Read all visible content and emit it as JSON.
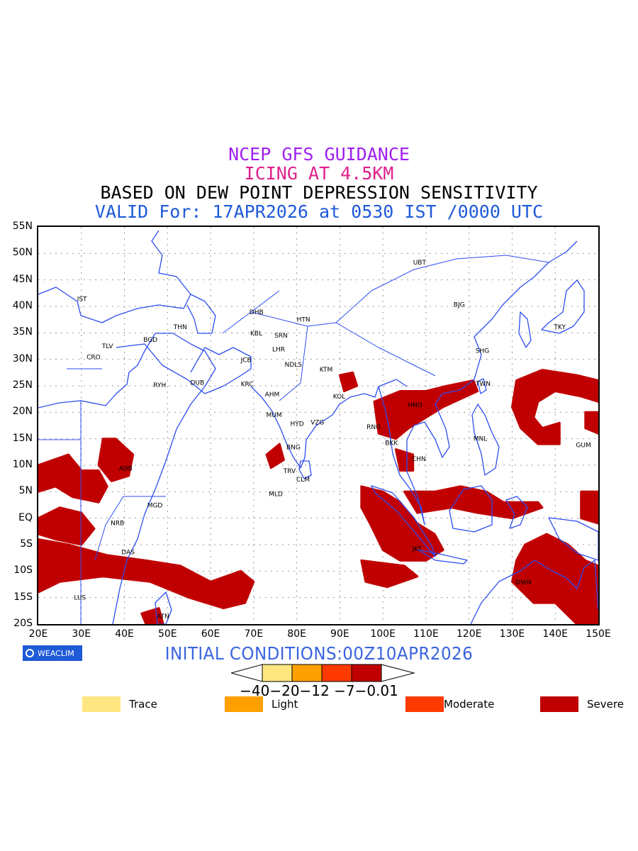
{
  "titles": {
    "line1": "NCEP GFS GUIDANCE",
    "line2": "ICING AT 4.5KM",
    "line3": "BASED ON DEW POINT DEPRESSION SENSITIVITY",
    "line4": "VALID For: 17APR2026 at 0530 IST /0000 UTC"
  },
  "colors": {
    "line1": "#a020f0",
    "line2": "#e0208c",
    "line3": "#000000",
    "line4": "#1f5ad8",
    "coast": "#2d4df0",
    "trace": "#ffe680",
    "light": "#ffa000",
    "moderate": "#ff3a00",
    "severe": "#c00000"
  },
  "axes": {
    "lat_labels": [
      "55N",
      "50N",
      "45N",
      "40N",
      "35N",
      "30N",
      "25N",
      "20N",
      "15N",
      "10N",
      "5N",
      "EQ",
      "5S",
      "10S",
      "15S",
      "20S"
    ],
    "lon_labels": [
      "20E",
      "30E",
      "40E",
      "50E",
      "60E",
      "70E",
      "80E",
      "90E",
      "100E",
      "110E",
      "120E",
      "130E",
      "140E",
      "150E"
    ],
    "lat_range": [
      -20,
      55
    ],
    "lon_range": [
      20,
      150
    ]
  },
  "cities": [
    {
      "name": "UBT",
      "lon": 107,
      "lat": 47.9
    },
    {
      "name": "IST",
      "lon": 29,
      "lat": 41
    },
    {
      "name": "BJG",
      "lon": 116.4,
      "lat": 39.9
    },
    {
      "name": "DHB",
      "lon": 69,
      "lat": 38.5
    },
    {
      "name": "HTN",
      "lon": 80,
      "lat": 37.1
    },
    {
      "name": "THN",
      "lon": 51.4,
      "lat": 35.7
    },
    {
      "name": "KBL",
      "lon": 69.2,
      "lat": 34.5
    },
    {
      "name": "SRN",
      "lon": 74.8,
      "lat": 34.1
    },
    {
      "name": "TKY",
      "lon": 139.7,
      "lat": 35.7
    },
    {
      "name": "BGD",
      "lon": 44.4,
      "lat": 33.3
    },
    {
      "name": "TLV",
      "lon": 34.8,
      "lat": 32.1
    },
    {
      "name": "LHR",
      "lon": 74.3,
      "lat": 31.5
    },
    {
      "name": "CRO",
      "lon": 31.2,
      "lat": 30
    },
    {
      "name": "SHG",
      "lon": 121.5,
      "lat": 31.2
    },
    {
      "name": "JCB",
      "lon": 67,
      "lat": 29.5
    },
    {
      "name": "NDLS",
      "lon": 77.2,
      "lat": 28.6
    },
    {
      "name": "KTM",
      "lon": 85.3,
      "lat": 27.7
    },
    {
      "name": "RYH",
      "lon": 46.7,
      "lat": 24.7
    },
    {
      "name": "DUB",
      "lon": 55.3,
      "lat": 25.2
    },
    {
      "name": "KRC",
      "lon": 67,
      "lat": 24.9
    },
    {
      "name": "TWN",
      "lon": 121.5,
      "lat": 25
    },
    {
      "name": "AHM",
      "lon": 72.6,
      "lat": 23
    },
    {
      "name": "KOL",
      "lon": 88.4,
      "lat": 22.6
    },
    {
      "name": "HNO",
      "lon": 105.8,
      "lat": 21
    },
    {
      "name": "MUM",
      "lon": 72.9,
      "lat": 19.1
    },
    {
      "name": "HYD",
      "lon": 78.5,
      "lat": 17.4
    },
    {
      "name": "VZG",
      "lon": 83.2,
      "lat": 17.7
    },
    {
      "name": "RNG",
      "lon": 96.2,
      "lat": 16.8
    },
    {
      "name": "MNL",
      "lon": 121,
      "lat": 14.6
    },
    {
      "name": "BKK",
      "lon": 100.5,
      "lat": 13.8
    },
    {
      "name": "GUM",
      "lon": 144.8,
      "lat": 13.4
    },
    {
      "name": "BNG",
      "lon": 77.6,
      "lat": 13
    },
    {
      "name": "CHN",
      "lon": 106.7,
      "lat": 10.8
    },
    {
      "name": "ADB",
      "lon": 38.7,
      "lat": 9
    },
    {
      "name": "TRV",
      "lon": 76.9,
      "lat": 8.5
    },
    {
      "name": "CLM",
      "lon": 79.9,
      "lat": 6.9
    },
    {
      "name": "MLD",
      "lon": 73.5,
      "lat": 4.2
    },
    {
      "name": "MGD",
      "lon": 45.3,
      "lat": 2
    },
    {
      "name": "NRB",
      "lon": 36.8,
      "lat": -1.3
    },
    {
      "name": "DAS",
      "lon": 39.3,
      "lat": -6.8
    },
    {
      "name": "JKT",
      "lon": 106.8,
      "lat": -6.2
    },
    {
      "name": "DWN",
      "lon": 130.8,
      "lat": -12.5
    },
    {
      "name": "LUS",
      "lon": 28.3,
      "lat": -15.4
    },
    {
      "name": "ATN",
      "lon": 47.5,
      "lat": -18.9
    }
  ],
  "initial_conditions": "INITIAL CONDITIONS:00Z10APR2026",
  "colorbar": {
    "labels": "−40−20−12 −7−0.01"
  },
  "legend": [
    {
      "label": "Trace",
      "color": "#ffe680"
    },
    {
      "label": "Light",
      "color": "#ffa000"
    },
    {
      "label": "Moderate",
      "color": "#ff3a00"
    },
    {
      "label": "Severe",
      "color": "#c00000"
    }
  ],
  "logo": "WEACLIM",
  "severe_regions": [
    {
      "name": "west-africa",
      "pts": [
        [
          20,
          10
        ],
        [
          27,
          12
        ],
        [
          30,
          9
        ],
        [
          34,
          9
        ],
        [
          36,
          6
        ],
        [
          34,
          3
        ],
        [
          28,
          4
        ],
        [
          24,
          6
        ],
        [
          20,
          5
        ]
      ]
    },
    {
      "name": "ethiopia",
      "pts": [
        [
          35,
          15
        ],
        [
          38,
          15
        ],
        [
          42,
          12
        ],
        [
          41,
          8
        ],
        [
          37,
          7
        ],
        [
          34,
          10
        ]
      ]
    },
    {
      "name": "congo",
      "pts": [
        [
          20,
          0
        ],
        [
          25,
          2
        ],
        [
          30,
          1
        ],
        [
          33,
          -2
        ],
        [
          30,
          -5
        ],
        [
          24,
          -4
        ],
        [
          20,
          -3
        ]
      ]
    },
    {
      "name": "south-africa-band",
      "pts": [
        [
          20,
          -4
        ],
        [
          27,
          -5
        ],
        [
          36,
          -7
        ],
        [
          45,
          -8
        ],
        [
          53,
          -9
        ],
        [
          60,
          -12
        ],
        [
          67,
          -10
        ],
        [
          70,
          -12
        ],
        [
          68,
          -16
        ],
        [
          63,
          -17
        ],
        [
          55,
          -15
        ],
        [
          46,
          -12
        ],
        [
          35,
          -11
        ],
        [
          25,
          -12
        ],
        [
          20,
          -14
        ]
      ]
    },
    {
      "name": "madagascar",
      "pts": [
        [
          44,
          -18
        ],
        [
          48,
          -17
        ],
        [
          49,
          -20
        ],
        [
          45,
          -20
        ]
      ]
    },
    {
      "name": "sri-lanka-sw",
      "pts": [
        [
          73,
          12
        ],
        [
          76,
          14
        ],
        [
          77,
          11
        ],
        [
          74,
          9.5
        ]
      ]
    },
    {
      "name": "ne-india",
      "pts": [
        [
          90,
          27
        ],
        [
          93,
          27.5
        ],
        [
          94,
          25
        ],
        [
          91,
          24
        ]
      ]
    },
    {
      "name": "south-china",
      "pts": [
        [
          98,
          22
        ],
        [
          104,
          24
        ],
        [
          110,
          24
        ],
        [
          115,
          25
        ],
        [
          121,
          26
        ],
        [
          122,
          24
        ],
        [
          114,
          21
        ],
        [
          106,
          17
        ],
        [
          103,
          15
        ],
        [
          99,
          16
        ]
      ]
    },
    {
      "name": "indochina-s",
      "pts": [
        [
          103,
          13
        ],
        [
          107,
          12
        ],
        [
          107,
          9
        ],
        [
          104,
          9
        ]
      ]
    },
    {
      "name": "sumatra-java",
      "pts": [
        [
          95,
          6
        ],
        [
          100,
          5
        ],
        [
          104,
          3
        ],
        [
          108,
          -1
        ],
        [
          112,
          -3
        ],
        [
          114,
          -6
        ],
        [
          110,
          -8
        ],
        [
          104,
          -8
        ],
        [
          100,
          -6
        ],
        [
          97,
          -1
        ],
        [
          95,
          2
        ]
      ]
    },
    {
      "name": "borneo-band",
      "pts": [
        [
          105,
          5
        ],
        [
          112,
          5
        ],
        [
          118,
          6
        ],
        [
          124,
          5
        ],
        [
          128,
          3
        ],
        [
          136,
          3
        ],
        [
          137,
          2
        ],
        [
          130,
          0
        ],
        [
          122,
          1
        ],
        [
          116,
          2
        ],
        [
          108,
          1
        ]
      ]
    },
    {
      "name": "java-sea",
      "pts": [
        [
          95,
          -8
        ],
        [
          105,
          -9
        ],
        [
          108,
          -11
        ],
        [
          101,
          -13
        ],
        [
          96,
          -12
        ]
      ]
    },
    {
      "name": "png-north-aus",
      "pts": [
        [
          133,
          -5
        ],
        [
          138,
          -3
        ],
        [
          143,
          -5
        ],
        [
          147,
          -8
        ],
        [
          150,
          -9
        ],
        [
          150,
          -20
        ],
        [
          145,
          -20
        ],
        [
          140,
          -16
        ],
        [
          135,
          -16
        ],
        [
          130,
          -12
        ],
        [
          131,
          -8
        ]
      ]
    },
    {
      "name": "east-equator",
      "pts": [
        [
          146,
          5
        ],
        [
          150,
          5
        ],
        [
          150,
          -1
        ],
        [
          146,
          0
        ]
      ]
    },
    {
      "name": "typhoon",
      "pts": [
        [
          131,
          26
        ],
        [
          137,
          28
        ],
        [
          145,
          27
        ],
        [
          150,
          26
        ],
        [
          150,
          22
        ],
        [
          146,
          23
        ],
        [
          140,
          24
        ],
        [
          136,
          22
        ],
        [
          135,
          19
        ],
        [
          137,
          17
        ],
        [
          141,
          18
        ],
        [
          141,
          14
        ],
        [
          136,
          14
        ],
        [
          132,
          17
        ],
        [
          130,
          21
        ]
      ]
    },
    {
      "name": "east-coast-20n",
      "pts": [
        [
          147,
          20
        ],
        [
          150,
          20
        ],
        [
          150,
          16
        ],
        [
          147,
          17
        ]
      ]
    },
    {
      "name": "north-aus-east",
      "pts": [
        [
          143,
          -12
        ],
        [
          148,
          -13
        ],
        [
          150,
          -17
        ],
        [
          146,
          -17
        ]
      ]
    }
  ]
}
